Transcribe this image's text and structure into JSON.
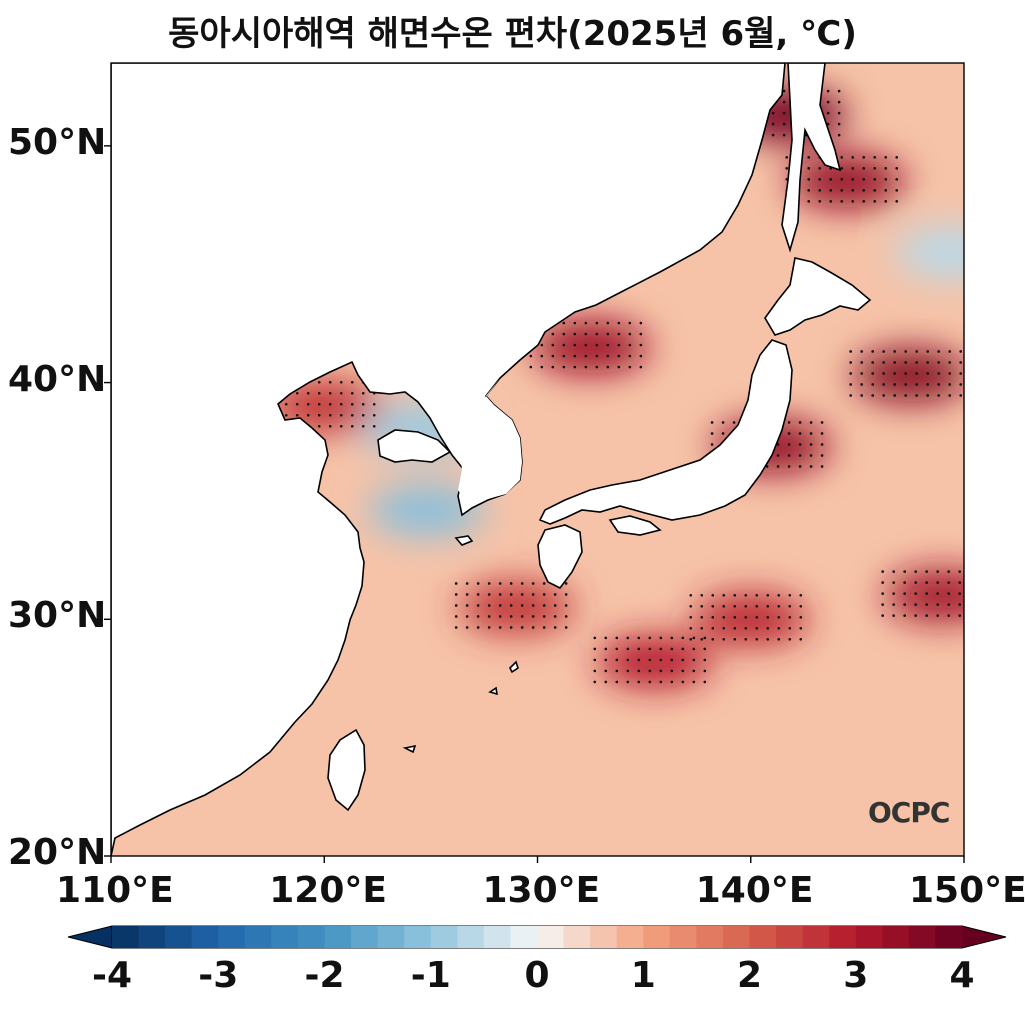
{
  "title": "동아시아해역 해면수온 편차(2025년 6월, ℃)",
  "map": {
    "type": "contour-map",
    "lon_range": [
      110,
      150
    ],
    "lat_range": [
      20,
      53.5
    ],
    "lon_ticks": [
      "110°E",
      "120°E",
      "130°E",
      "140°E",
      "150°E"
    ],
    "lat_ticks": [
      "20°N",
      "30°N",
      "40°N",
      "50°N"
    ],
    "stippling": "significance dots",
    "logo": "OCPC"
  },
  "colorbar": {
    "range": [
      -4,
      4
    ],
    "ticks": [
      "-4",
      "-3",
      "-2",
      "-1",
      "0",
      "1",
      "2",
      "3",
      "4"
    ],
    "colormap": "RdBu_r",
    "neg_color": "#053061",
    "pos_color": "#67001f"
  },
  "anomaly_hotspots": [
    {
      "lon": 132.5,
      "lat": 41.5,
      "value": 3.3
    },
    {
      "lon": 141.8,
      "lat": 51.3,
      "value": 3.8
    },
    {
      "lon": 144.5,
      "lat": 48.5,
      "value": 3.4
    },
    {
      "lon": 147.5,
      "lat": 40.3,
      "value": 3.6
    },
    {
      "lon": 141.0,
      "lat": 37.3,
      "value": 3.4
    },
    {
      "lon": 149.0,
      "lat": 31.0,
      "value": 3.2
    },
    {
      "lon": 135.5,
      "lat": 28.2,
      "value": 2.9
    },
    {
      "lon": 129.0,
      "lat": 30.5,
      "value": 2.6
    },
    {
      "lon": 120.0,
      "lat": 39.0,
      "value": 2.6
    },
    {
      "lon": 140.0,
      "lat": 30.0,
      "value": 2.8
    },
    {
      "lon": 124.5,
      "lat": 38.0,
      "value": -0.9
    },
    {
      "lon": 124.8,
      "lat": 34.6,
      "value": -1.1
    },
    {
      "lon": 149.5,
      "lat": 45.5,
      "value": -0.6
    }
  ]
}
